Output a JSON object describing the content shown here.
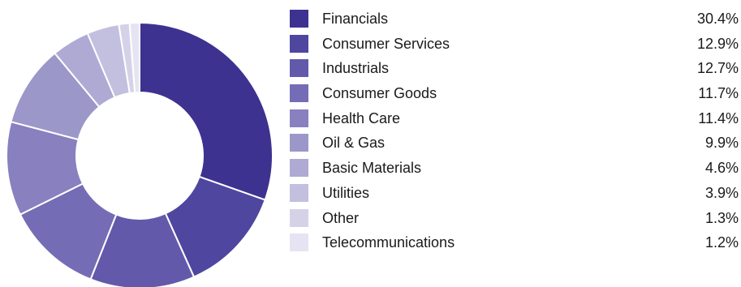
{
  "chart_data": {
    "type": "pie",
    "title": "",
    "legend_position": "right",
    "slices": [
      {
        "label": "Financials",
        "value_text": "30.4%",
        "value": 30.4,
        "color": "#3d3290"
      },
      {
        "label": "Consumer Services",
        "value_text": "12.9%",
        "value": 12.9,
        "color": "#4f46a0"
      },
      {
        "label": "Industrials",
        "value_text": "12.7%",
        "value": 12.7,
        "color": "#6359aa"
      },
      {
        "label": "Consumer Goods",
        "value_text": "11.7%",
        "value": 11.7,
        "color": "#746db5"
      },
      {
        "label": "Health Care",
        "value_text": "11.4%",
        "value": 11.4,
        "color": "#8880bf"
      },
      {
        "label": "Oil & Gas",
        "value_text": "9.9%",
        "value": 9.9,
        "color": "#9c97c9"
      },
      {
        "label": "Basic Materials",
        "value_text": "4.6%",
        "value": 4.6,
        "color": "#aeaad4"
      },
      {
        "label": "Utilities",
        "value_text": "3.9%",
        "value": 3.9,
        "color": "#c2bfdf"
      },
      {
        "label": "Other",
        "value_text": "1.3%",
        "value": 1.3,
        "color": "#d5d2e8"
      },
      {
        "label": "Telecommunications",
        "value_text": "1.2%",
        "value": 1.2,
        "color": "#e6e4f2"
      }
    ]
  }
}
